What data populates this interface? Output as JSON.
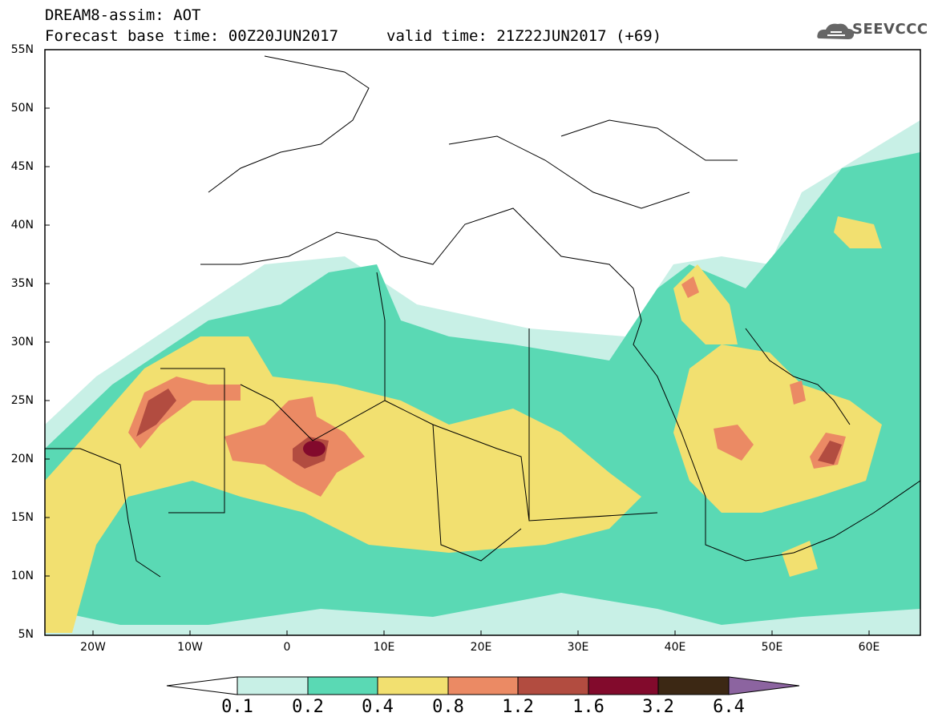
{
  "header": {
    "line1": "DREAM8-assim: AOT",
    "line2": "Forecast base time: 00Z20JUN2017",
    "valid": "valid time: 21Z22JUN2017 (+69)"
  },
  "logo": {
    "text": "SEEVCCC",
    "icon": "cloud-icon"
  },
  "map": {
    "lat_labels": [
      "55N",
      "50N",
      "45N",
      "40N",
      "35N",
      "30N",
      "25N",
      "20N",
      "15N",
      "10N",
      "5N"
    ],
    "lon_labels": [
      "20W",
      "10W",
      "0",
      "10E",
      "20E",
      "30E",
      "40E",
      "50E",
      "60E"
    ],
    "extent": {
      "lon": [
        -25,
        65
      ],
      "lat": [
        5,
        55
      ]
    }
  },
  "colorbar": {
    "labels": [
      "0.1",
      "0.2",
      "0.4",
      "0.8",
      "1.2",
      "1.6",
      "3.2",
      "6.4"
    ],
    "colors": [
      "#c8f0e6",
      "#5ad9b4",
      "#f2e070",
      "#eb8a64",
      "#b24c40",
      "#820a2c",
      "#3c2814",
      "#8c64a0"
    ]
  }
}
